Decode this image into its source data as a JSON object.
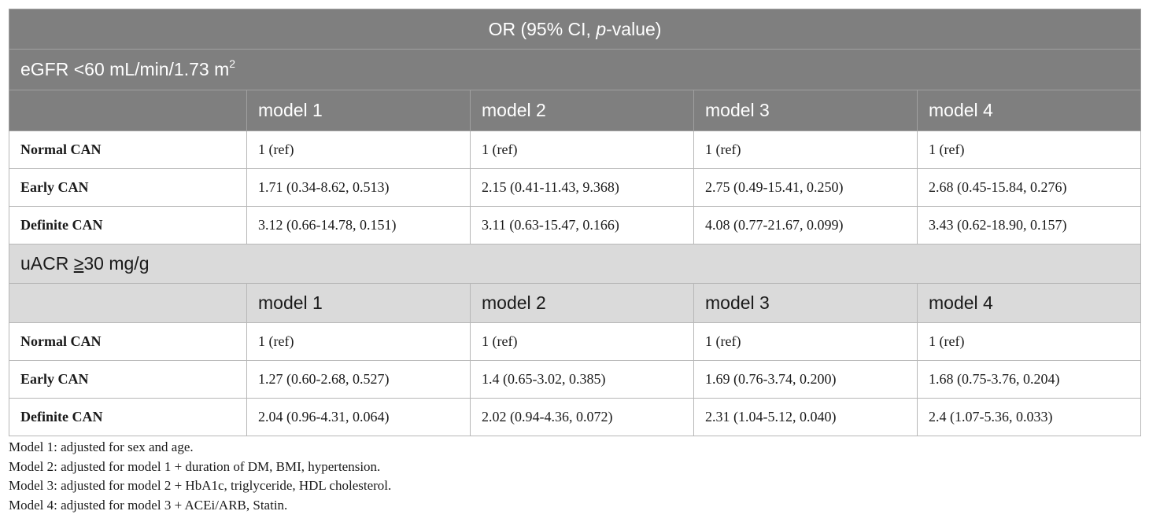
{
  "header": {
    "or_prefix": "OR (95% CI, ",
    "or_p": "p",
    "or_suffix": "-value)"
  },
  "sections": [
    {
      "title_main": "eGFR <60 mL/min/1.73 m",
      "title_sup": "2",
      "models": [
        "model 1",
        "model 2",
        "model 3",
        "model 4"
      ],
      "rows": [
        {
          "label": "Normal CAN",
          "values": [
            "1 (ref)",
            "1 (ref)",
            "1 (ref)",
            "1 (ref)"
          ]
        },
        {
          "label": "Early CAN",
          "values": [
            "1.71 (0.34-8.62, 0.513)",
            "2.15 (0.41-11.43, 9.368)",
            "2.75 (0.49-15.41, 0.250)",
            "2.68 (0.45-15.84, 0.276)"
          ]
        },
        {
          "label": "Definite CAN",
          "values": [
            "3.12 (0.66-14.78, 0.151)",
            "3.11 (0.63-15.47, 0.166)",
            "4.08 (0.77-21.67, 0.099)",
            "3.43 (0.62-18.90, 0.157)"
          ]
        }
      ]
    },
    {
      "title_pre": "uACR ",
      "title_u": "≥",
      "title_post": "30 mg/g",
      "models": [
        "model 1",
        "model 2",
        "model 3",
        "model 4"
      ],
      "rows": [
        {
          "label": "Normal CAN",
          "values": [
            "1 (ref)",
            "1 (ref)",
            "1 (ref)",
            "1 (ref)"
          ]
        },
        {
          "label": "Early CAN",
          "values": [
            "1.27 (0.60-2.68, 0.527)",
            "1.4 (0.65-3.02, 0.385)",
            "1.69 (0.76-3.74, 0.200)",
            "1.68 (0.75-3.76, 0.204)"
          ]
        },
        {
          "label": "Definite CAN",
          "values": [
            "2.04 (0.96-4.31, 0.064)",
            "2.02 (0.94-4.36, 0.072)",
            "2.31 (1.04-5.12, 0.040)",
            "2.4 (1.07-5.36, 0.033)"
          ]
        }
      ]
    }
  ],
  "notes": [
    "Model 1: adjusted for sex and age.",
    "Model 2: adjusted for model 1 + duration of DM, BMI, hypertension.",
    "Model 3: adjusted for model 2 + HbA1c, triglyceride, HDL cholesterol.",
    "Model 4: adjusted for model 3 + ACEi/ARB, Statin."
  ],
  "colors": {
    "header_bg": "#7f7f7f",
    "section2_bg": "#dadada",
    "border": "#b7b7b7"
  }
}
